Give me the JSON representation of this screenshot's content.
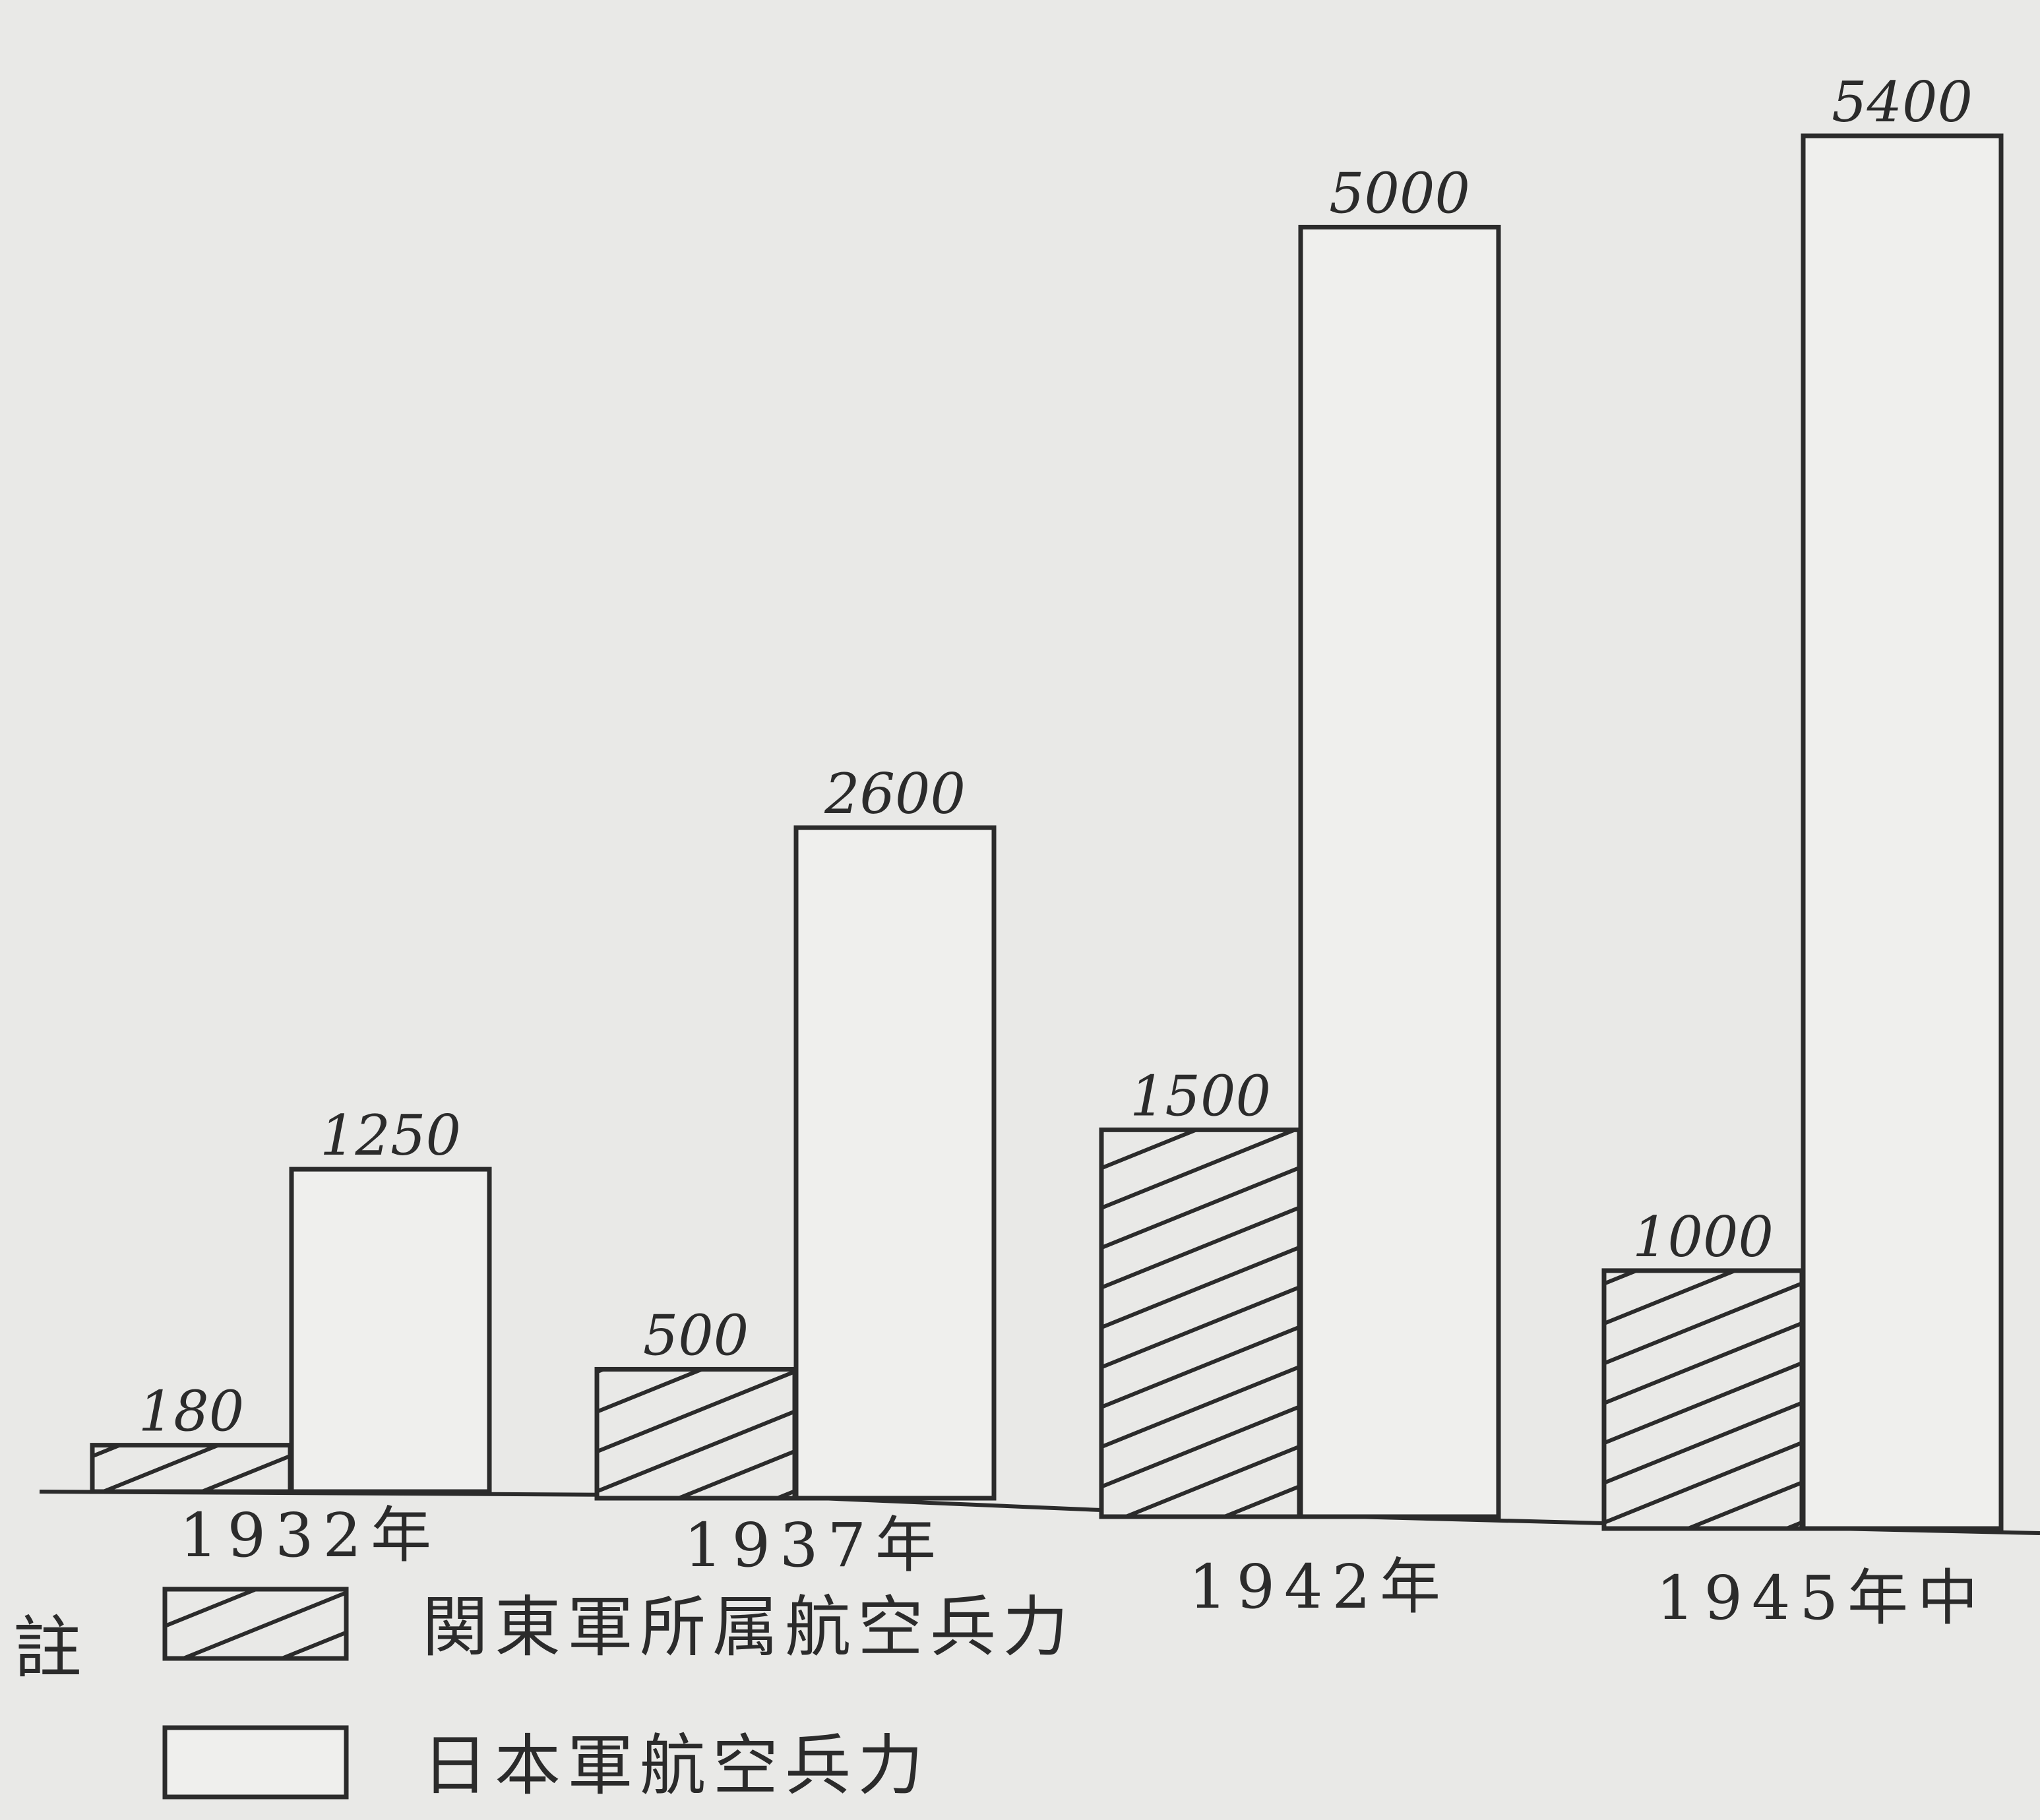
{
  "chart_data": {
    "type": "bar",
    "categories": [
      "1932年",
      "1937年",
      "1942年",
      "1945年中"
    ],
    "series": [
      {
        "name": "関東軍所属航空兵力",
        "pattern": "hatched",
        "values": [
          180,
          500,
          1500,
          1000
        ],
        "labels": [
          "180",
          "500",
          "1500",
          "1000"
        ]
      },
      {
        "name": "日本軍航空兵力",
        "pattern": "open",
        "values": [
          1250,
          2600,
          5000,
          5400
        ],
        "labels": [
          "1250",
          "2600",
          "5000",
          "5400"
        ]
      }
    ],
    "legend": {
      "title": "註",
      "placement": "bottom-left"
    },
    "ylim": [
      0,
      5400
    ],
    "grid": false,
    "colors": {
      "ink": "#2b2b2b",
      "paper": "#e9e9e7",
      "bar_fill": "#efefed"
    }
  }
}
